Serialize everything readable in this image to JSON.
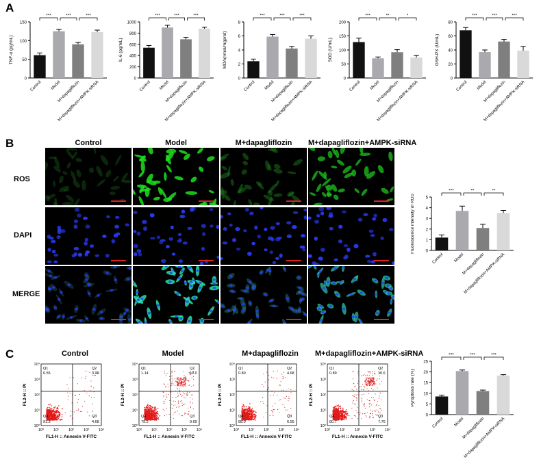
{
  "panels": {
    "a": "A",
    "b": "B",
    "c": "C"
  },
  "groups": [
    "Control",
    "Model",
    "M+dapagliflozin",
    "M+dapagliflozin+AMPK-siRNA"
  ],
  "colors": {
    "bars": [
      "#111111",
      "#a9a9ae",
      "#7f7f7f",
      "#d9d9d9"
    ]
  },
  "chart_data": [
    {
      "id": "tnf",
      "type": "bar",
      "ylabel": "TNF-α (pg/mL)",
      "categories": [
        "Control",
        "Model",
        "M+dapagliflozin",
        "M+dapagliflozin+AMPK-siRNA"
      ],
      "values": [
        61,
        125,
        90,
        123
      ],
      "errors": [
        6,
        5,
        5,
        5
      ],
      "ylim": [
        0,
        150
      ],
      "yticks": [
        "0",
        "50",
        "100",
        "150"
      ],
      "ytick_values": [
        0,
        50,
        100,
        150
      ],
      "significance": [
        "***",
        "***",
        "***"
      ]
    },
    {
      "id": "il6",
      "type": "bar",
      "ylabel": "IL-6 (pg/mL)",
      "categories": [
        "Control",
        "Model",
        "M+dapagliflozin",
        "M+dapagliflozin+AMPK-siRNA"
      ],
      "values": [
        540,
        900,
        690,
        880
      ],
      "errors": [
        40,
        40,
        35,
        25
      ],
      "ylim": [
        0,
        1000
      ],
      "yticks": [
        "0",
        "200",
        "400",
        "600",
        "800",
        "1000"
      ],
      "ytick_values": [
        0,
        200,
        400,
        600,
        800,
        1000
      ],
      "significance": [
        "***",
        "***",
        "***"
      ]
    },
    {
      "id": "mda",
      "type": "bar",
      "ylabel": "MDA(nmol/mgprot)",
      "categories": [
        "Control",
        "Model",
        "M+dapagliflozin",
        "M+dapagliflozin+AMPK-siRNA"
      ],
      "values": [
        2.4,
        5.9,
        4.2,
        5.6
      ],
      "errors": [
        0.3,
        0.3,
        0.3,
        0.4
      ],
      "ylim": [
        0,
        8
      ],
      "yticks": [
        "0",
        "2",
        "4",
        "6",
        "8"
      ],
      "ytick_values": [
        0,
        2,
        4,
        6,
        8
      ],
      "significance": [
        "***",
        "***",
        "***"
      ]
    },
    {
      "id": "sod",
      "type": "bar",
      "ylabel": "SOD (U/mL)",
      "categories": [
        "Control",
        "Model",
        "M+dapagliflozin",
        "M+dapagliflozin+AMPK-siRNA"
      ],
      "values": [
        128,
        70,
        92,
        73
      ],
      "errors": [
        14,
        5,
        9,
        7
      ],
      "ylim": [
        0,
        200
      ],
      "yticks": [
        "0",
        "50",
        "100",
        "150",
        "200"
      ],
      "ytick_values": [
        0,
        50,
        100,
        150,
        200
      ],
      "significance": [
        "***",
        "**",
        "*"
      ]
    },
    {
      "id": "gsh",
      "type": "bar",
      "ylabel": "GSH-PX (U/mL)",
      "categories": [
        "Control",
        "Model",
        "M+dapagliflozin",
        "M+dapagliflozin+AMPK-siRNA"
      ],
      "values": [
        68,
        37,
        52,
        39
      ],
      "errors": [
        4,
        3,
        3,
        6
      ],
      "ylim": [
        0,
        80
      ],
      "yticks": [
        "0",
        "20",
        "40",
        "60",
        "80"
      ],
      "ytick_values": [
        0,
        20,
        40,
        60,
        80
      ],
      "significance": [
        "***",
        "***",
        "***"
      ]
    },
    {
      "id": "ros",
      "type": "bar",
      "ylabel": "Fluorescence intensity of ROS",
      "categories": [
        "Control",
        "Model",
        "M+dapagliflozin",
        "M+dapagliflozin+AMPK-siRNA"
      ],
      "values": [
        1.2,
        3.7,
        2.1,
        3.5
      ],
      "errors": [
        0.25,
        0.45,
        0.35,
        0.25
      ],
      "ylim": [
        0,
        5
      ],
      "yticks": [
        "0",
        "1",
        "2",
        "3",
        "4",
        "5"
      ],
      "ytick_values": [
        0,
        1,
        2,
        3,
        4,
        5
      ],
      "significance": [
        "***",
        "**",
        "**"
      ]
    },
    {
      "id": "pyro",
      "type": "bar",
      "ylabel": "Pyroptosis rate (%)",
      "categories": [
        "Control",
        "Model",
        "M+dapagliflozin",
        "M+dapagliflozin+AMPK-siRNA"
      ],
      "values": [
        8.5,
        20.4,
        11.0,
        18.3
      ],
      "errors": [
        0.6,
        0.5,
        0.5,
        0.4
      ],
      "ylim": [
        0,
        25
      ],
      "yticks": [
        "0",
        "5",
        "10",
        "15",
        "20",
        "25"
      ],
      "ytick_values": [
        0,
        5,
        10,
        15,
        20,
        25
      ],
      "significance": [
        "***",
        "***",
        "***"
      ]
    }
  ],
  "microscopy": {
    "columns": [
      "Control",
      "Model",
      "M+dapagliflozin",
      "M+dapagliflozin+AMPK-siRNA"
    ],
    "rows": [
      "ROS",
      "DAPI",
      "MERGE"
    ],
    "ros_intensity": [
      0.15,
      0.85,
      0.3,
      0.7
    ]
  },
  "flow": {
    "titles": [
      "Control",
      "Model",
      "M+dapagliflozin",
      "M+dapagliflozin+AMPK-siRNA"
    ],
    "xlabel": "FL1-H :: Annexin V-FITC",
    "ylabel": "FL2-H :: PI",
    "ticks": [
      "10⁰",
      "10¹",
      "10²",
      "10³",
      "10⁴"
    ],
    "quadrants": [
      {
        "Q1": "0.55",
        "Q2": "3.48",
        "Q3": "4.68",
        "Q4": "91.3"
      },
      {
        "Q1": "1.14",
        "Q2": "10.0",
        "Q3": "9.69",
        "Q4": "79.2"
      },
      {
        "Q1": "0.80",
        "Q2": "4.68",
        "Q3": "6.55",
        "Q4": "88.0"
      },
      {
        "Q1": "0.89",
        "Q2": "10.6",
        "Q3": "7.76",
        "Q4": "80.7"
      }
    ],
    "labels": {
      "q1": "Q1",
      "q2": "Q2",
      "q3": "Q3",
      "q4": "Q4"
    }
  }
}
